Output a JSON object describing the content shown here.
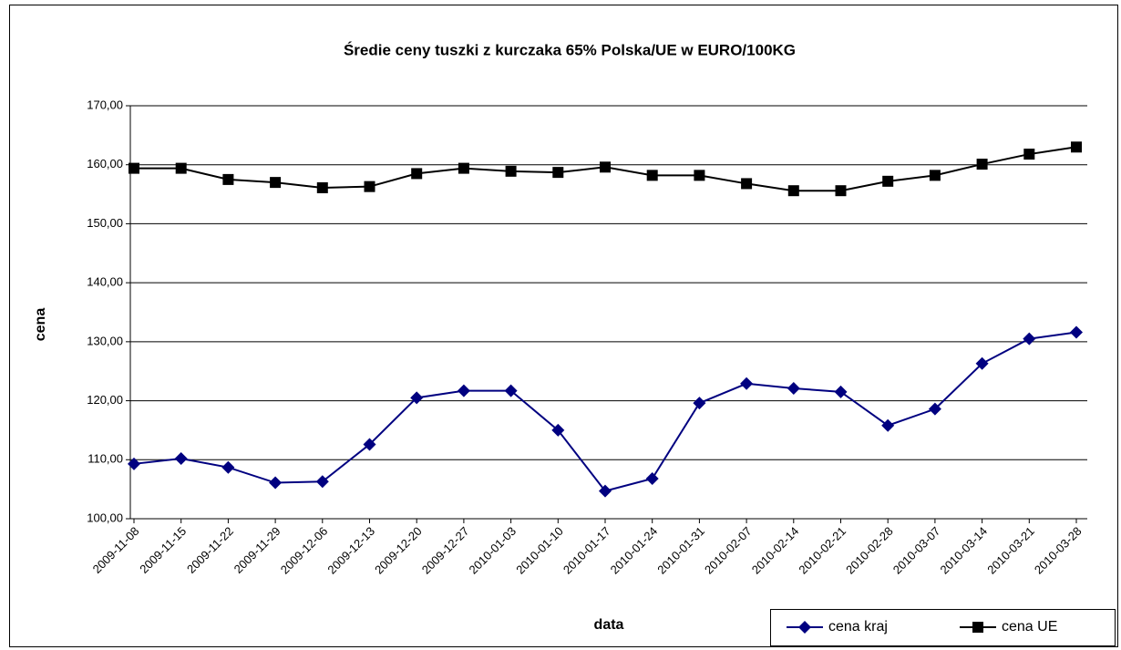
{
  "chart_data": {
    "type": "line",
    "title": "Średie ceny tuszki z kurczaka 65% Polska/UE w EURO/100KG",
    "x_label": "data",
    "y_label": "cena",
    "categories": [
      "2009-11-08",
      "2009-11-15",
      "2009-11-22",
      "2009-11-29",
      "2009-12-06",
      "2009-12-13",
      "2009-12-20",
      "2009-12-27",
      "2010-01-03",
      "2010-01-10",
      "2010-01-17",
      "2010-01-24",
      "2010-01-31",
      "2010-02-07",
      "2010-02-14",
      "2010-02-21",
      "2010-02-28",
      "2010-03-07",
      "2010-03-14",
      "2010-03-21",
      "2010-03-28"
    ],
    "series": [
      {
        "name": "cena kraj",
        "color": "#000080",
        "marker": "diamond",
        "values": [
          109.3,
          110.2,
          108.7,
          106.1,
          106.3,
          112.6,
          120.5,
          121.7,
          121.7,
          115.0,
          104.7,
          106.8,
          119.6,
          122.9,
          122.1,
          121.5,
          115.8,
          118.6,
          126.3,
          130.5,
          131.6
        ]
      },
      {
        "name": "cena UE",
        "color": "#000000",
        "marker": "square",
        "values": [
          159.4,
          159.4,
          157.5,
          157.0,
          156.1,
          156.3,
          158.5,
          159.4,
          158.9,
          158.7,
          159.6,
          158.2,
          158.2,
          156.8,
          155.6,
          155.6,
          157.2,
          158.2,
          160.1,
          161.8,
          163.0
        ]
      }
    ],
    "ylim": [
      100,
      170
    ],
    "yticks": [
      {
        "value": 100,
        "label": "100,00"
      },
      {
        "value": 110,
        "label": "110,00"
      },
      {
        "value": 120,
        "label": "120,00"
      },
      {
        "value": 130,
        "label": "130,00"
      },
      {
        "value": 140,
        "label": "140,00"
      },
      {
        "value": 150,
        "label": "150,00"
      },
      {
        "value": 160,
        "label": "160,00"
      },
      {
        "value": 170,
        "label": "170,00"
      }
    ],
    "grid": true,
    "legend": "bottom-right"
  }
}
